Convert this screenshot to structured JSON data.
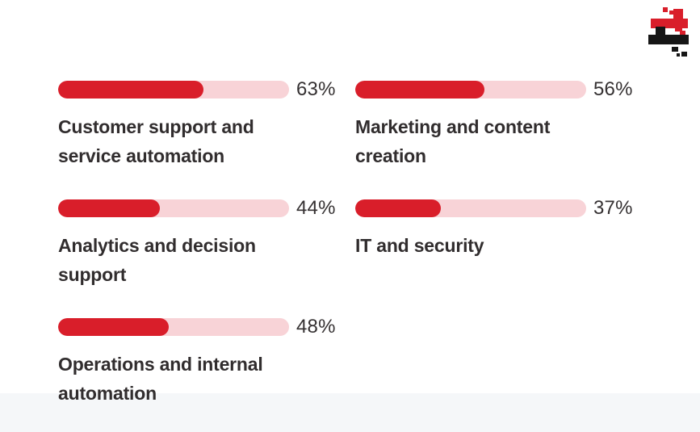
{
  "brand": {
    "logo_name": "pixel-glitch-plus-logo",
    "accent_color": "#d91e2a",
    "track_color": "#f8d3d7",
    "text_color": "#312d2e",
    "footer_strip_color": "#f5f7f9"
  },
  "chart_data": {
    "type": "bar",
    "orientation": "horizontal",
    "unit": "%",
    "title": "",
    "categories": [
      "Customer support and service automation",
      "Marketing and content creation",
      "Analytics and decision support",
      "IT and security",
      "Operations and internal automation"
    ],
    "values": [
      63,
      56,
      44,
      37,
      48
    ],
    "value_labels": [
      "63%",
      "56%",
      "44%",
      "37%",
      "48%"
    ],
    "xlim": [
      0,
      100
    ],
    "grid": false,
    "legend": false,
    "layout": "2-column grid, row-major order; rounded progress bars with value label right of bar and category label below"
  }
}
